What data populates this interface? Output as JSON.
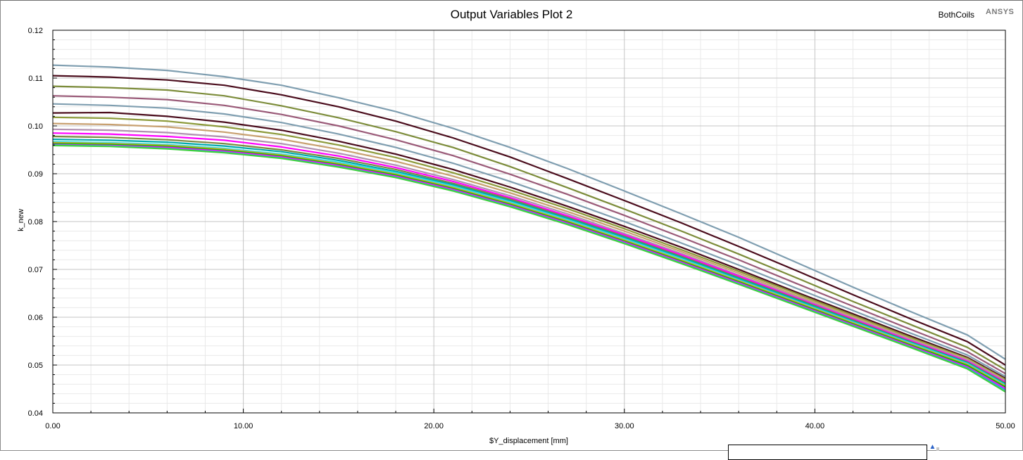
{
  "plot": {
    "title": "Output Variables Plot 2",
    "design_name": "BothCoils",
    "brand": "ANSYS"
  },
  "chart_data": {
    "type": "line",
    "title": "Output Variables Plot 2",
    "xlabel": "$Y_displacement [mm]",
    "ylabel": "k_new",
    "xlim": [
      0,
      50
    ],
    "ylim": [
      0.04,
      0.12
    ],
    "x_ticks": [
      "0.00",
      "10.00",
      "20.00",
      "30.00",
      "40.00",
      "50.00"
    ],
    "y_ticks": [
      "0.04",
      "0.05",
      "0.06",
      "0.07",
      "0.08",
      "0.09",
      "0.10",
      "0.11",
      "0.12"
    ],
    "grid": true,
    "x": [
      0,
      3,
      6,
      9,
      12,
      15,
      18,
      21,
      24,
      27,
      30,
      33,
      36,
      39,
      42,
      45,
      48,
      50
    ],
    "series": [
      {
        "color": "#7f9eb0",
        "values": [
          0.1127,
          0.1123,
          0.1116,
          0.1103,
          0.1085,
          0.1059,
          0.103,
          0.0995,
          0.0955,
          0.0911,
          0.0864,
          0.0816,
          0.0767,
          0.0715,
          0.0663,
          0.0612,
          0.0563,
          0.0512
        ]
      },
      {
        "color": "#4a0c1c",
        "values": [
          0.1105,
          0.1102,
          0.1096,
          0.1085,
          0.1065,
          0.104,
          0.101,
          0.0975,
          0.0935,
          0.089,
          0.0844,
          0.0797,
          0.0748,
          0.0698,
          0.0647,
          0.0597,
          0.0549,
          0.05
        ]
      },
      {
        "color": "#7c8c3a",
        "values": [
          0.1083,
          0.108,
          0.1075,
          0.1063,
          0.1042,
          0.1017,
          0.0988,
          0.0955,
          0.0915,
          0.0871,
          0.0826,
          0.078,
          0.0732,
          0.0683,
          0.0633,
          0.0585,
          0.0537,
          0.049
        ]
      },
      {
        "color": "#9a5a78",
        "values": [
          0.1063,
          0.106,
          0.1055,
          0.1043,
          0.1024,
          0.1,
          0.0971,
          0.0938,
          0.0899,
          0.0857,
          0.0813,
          0.0767,
          0.072,
          0.0671,
          0.0623,
          0.0575,
          0.0528,
          0.0482
        ]
      },
      {
        "color": "#7f9eb0",
        "values": [
          0.1046,
          0.1043,
          0.1037,
          0.1025,
          0.1007,
          0.0983,
          0.0955,
          0.0922,
          0.0884,
          0.0843,
          0.08,
          0.0755,
          0.0709,
          0.0661,
          0.0614,
          0.0567,
          0.0521,
          0.0476
        ]
      },
      {
        "color": "#4a0c1c",
        "values": [
          0.1027,
          0.1028,
          0.102,
          0.1008,
          0.0991,
          0.0968,
          0.0941,
          0.0909,
          0.0872,
          0.0832,
          0.079,
          0.0746,
          0.07,
          0.0653,
          0.0607,
          0.0561,
          0.0516,
          0.0472
        ]
      },
      {
        "color": "#8c9a3a",
        "values": [
          0.1018,
          0.1016,
          0.101,
          0.0998,
          0.0982,
          0.096,
          0.0934,
          0.0902,
          0.0866,
          0.0827,
          0.0785,
          0.0741,
          0.0696,
          0.065,
          0.0604,
          0.0558,
          0.0514,
          0.047
        ]
      },
      {
        "color": "#c8a070",
        "values": [
          0.1005,
          0.1003,
          0.0998,
          0.0987,
          0.0972,
          0.0951,
          0.0926,
          0.0895,
          0.086,
          0.0821,
          0.078,
          0.0737,
          0.0692,
          0.0646,
          0.0601,
          0.0555,
          0.0512,
          0.0468
        ]
      },
      {
        "color": "#b090b0",
        "values": [
          0.0993,
          0.0991,
          0.0986,
          0.0977,
          0.0963,
          0.0943,
          0.0918,
          0.0888,
          0.0854,
          0.0816,
          0.0775,
          0.0733,
          0.0688,
          0.0643,
          0.0598,
          0.0553,
          0.051,
          0.0466
        ]
      },
      {
        "color": "#ff00ff",
        "values": [
          0.0985,
          0.0983,
          0.0978,
          0.097,
          0.0956,
          0.0937,
          0.0913,
          0.0884,
          0.085,
          0.0812,
          0.0772,
          0.073,
          0.0686,
          0.0641,
          0.0596,
          0.0551,
          0.0508,
          0.0464
        ]
      },
      {
        "color": "#7a8840",
        "values": [
          0.0978,
          0.0976,
          0.0971,
          0.0963,
          0.095,
          0.0932,
          0.0909,
          0.088,
          0.0847,
          0.0809,
          0.0769,
          0.0727,
          0.0683,
          0.0639,
          0.0594,
          0.0549,
          0.0506,
          0.0462
        ]
      },
      {
        "color": "#00aaaa",
        "values": [
          0.0972,
          0.097,
          0.0966,
          0.0958,
          0.0946,
          0.0928,
          0.0905,
          0.0877,
          0.0844,
          0.0807,
          0.0767,
          0.0725,
          0.0681,
          0.0637,
          0.0592,
          0.0548,
          0.0505,
          0.046
        ]
      },
      {
        "color": "#30e0e0",
        "values": [
          0.0967,
          0.0965,
          0.0961,
          0.0953,
          0.0941,
          0.0924,
          0.0902,
          0.0874,
          0.0841,
          0.0804,
          0.0764,
          0.0722,
          0.0678,
          0.0634,
          0.059,
          0.0546,
          0.0503,
          0.0458
        ]
      },
      {
        "color": "#e0a020",
        "values": [
          0.0965,
          0.0963,
          0.0959,
          0.0951,
          0.0939,
          0.0921,
          0.0899,
          0.0871,
          0.0838,
          0.0801,
          0.0761,
          0.0719,
          0.0676,
          0.0632,
          0.0588,
          0.0544,
          0.0501,
          0.0456
        ]
      },
      {
        "color": "#00cc00",
        "values": [
          0.0963,
          0.0961,
          0.0957,
          0.0949,
          0.0937,
          0.0919,
          0.0897,
          0.0869,
          0.0836,
          0.0799,
          0.0759,
          0.0717,
          0.0674,
          0.063,
          0.0586,
          0.0542,
          0.0499,
          0.0454
        ]
      },
      {
        "color": "#ff00ff",
        "values": [
          0.0961,
          0.0959,
          0.0955,
          0.0947,
          0.0935,
          0.0917,
          0.0895,
          0.0867,
          0.0834,
          0.0797,
          0.0757,
          0.0715,
          0.0672,
          0.0628,
          0.0584,
          0.054,
          0.0496,
          0.0451
        ]
      },
      {
        "color": "#3aa0e0",
        "values": [
          0.096,
          0.0958,
          0.0953,
          0.0945,
          0.0933,
          0.0915,
          0.0893,
          0.0865,
          0.0832,
          0.0795,
          0.0755,
          0.0713,
          0.067,
          0.0626,
          0.0582,
          0.0538,
          0.0494,
          0.0448
        ]
      },
      {
        "color": "#40d040",
        "values": [
          0.0959,
          0.0957,
          0.0952,
          0.0944,
          0.0932,
          0.0914,
          0.0892,
          0.0864,
          0.0831,
          0.0794,
          0.0754,
          0.0712,
          0.0669,
          0.0625,
          0.0581,
          0.0537,
          0.0492,
          0.0444
        ]
      }
    ]
  }
}
